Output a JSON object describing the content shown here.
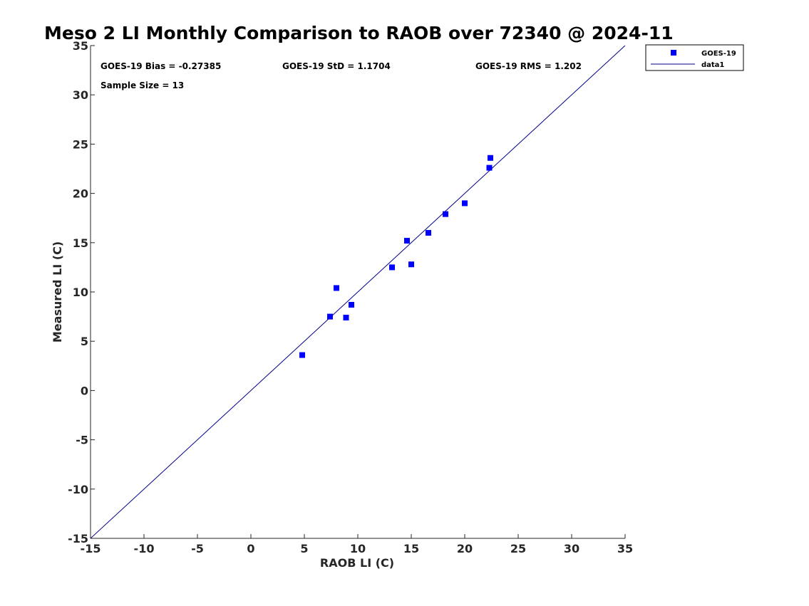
{
  "chart_data": {
    "type": "scatter",
    "title": "Meso 2 LI Monthly Comparison to RAOB over 72340 @ 2024-11",
    "xlabel": "RAOB LI (C)",
    "ylabel": "Measured LI (C)",
    "xlim": [
      -15,
      35
    ],
    "ylim": [
      -15,
      35
    ],
    "xticks": [
      "-15",
      "-10",
      "-5",
      "0",
      "5",
      "10",
      "15",
      "20",
      "25",
      "30",
      "35"
    ],
    "yticks": [
      "-15",
      "-10",
      "-5",
      "0",
      "5",
      "10",
      "15",
      "20",
      "25",
      "30",
      "35"
    ],
    "grid": false,
    "legend_position": "top-right (outside axes)",
    "annotations": {
      "bias": "GOES-19 Bias = -0.27385",
      "std": "GOES-19 StD = 1.1704",
      "rms": "GOES-19 RMS = 1.202",
      "sample_size": "Sample Size = 13"
    },
    "series": [
      {
        "name": "GOES-19",
        "kind": "scatter",
        "marker": "square",
        "color": "#0000ff",
        "points": [
          {
            "x": 4.8,
            "y": 3.6
          },
          {
            "x": 7.4,
            "y": 7.5
          },
          {
            "x": 8.0,
            "y": 10.4
          },
          {
            "x": 8.9,
            "y": 7.4
          },
          {
            "x": 9.4,
            "y": 8.7
          },
          {
            "x": 13.2,
            "y": 12.5
          },
          {
            "x": 14.6,
            "y": 15.2
          },
          {
            "x": 15.0,
            "y": 12.8
          },
          {
            "x": 16.6,
            "y": 16.0
          },
          {
            "x": 18.2,
            "y": 17.9
          },
          {
            "x": 20.0,
            "y": 19.0
          },
          {
            "x": 22.3,
            "y": 22.6
          },
          {
            "x": 22.4,
            "y": 23.6
          }
        ]
      },
      {
        "name": "data1",
        "kind": "line",
        "color": "#00008b",
        "points": [
          {
            "x": -15,
            "y": -15
          },
          {
            "x": 35,
            "y": 35
          }
        ]
      }
    ]
  }
}
